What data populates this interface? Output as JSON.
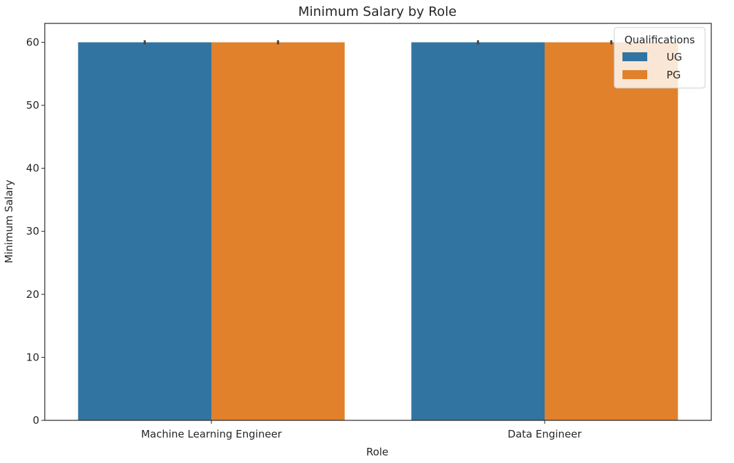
{
  "chart_data": {
    "type": "bar",
    "title": "Minimum Salary by Role",
    "xlabel": "Role",
    "ylabel": "Minimum Salary",
    "categories": [
      "Machine Learning Engineer",
      "Data Engineer"
    ],
    "series": [
      {
        "name": "UG",
        "values": [
          60,
          60
        ],
        "color": "#3274a1"
      },
      {
        "name": "PG",
        "values": [
          60,
          60
        ],
        "color": "#e1812c"
      }
    ],
    "ylim": [
      0,
      63
    ],
    "yticks": [
      0,
      10,
      20,
      30,
      40,
      50,
      60
    ],
    "legend": {
      "title": "Qualifications",
      "placement": "top-right"
    },
    "grid": false
  }
}
